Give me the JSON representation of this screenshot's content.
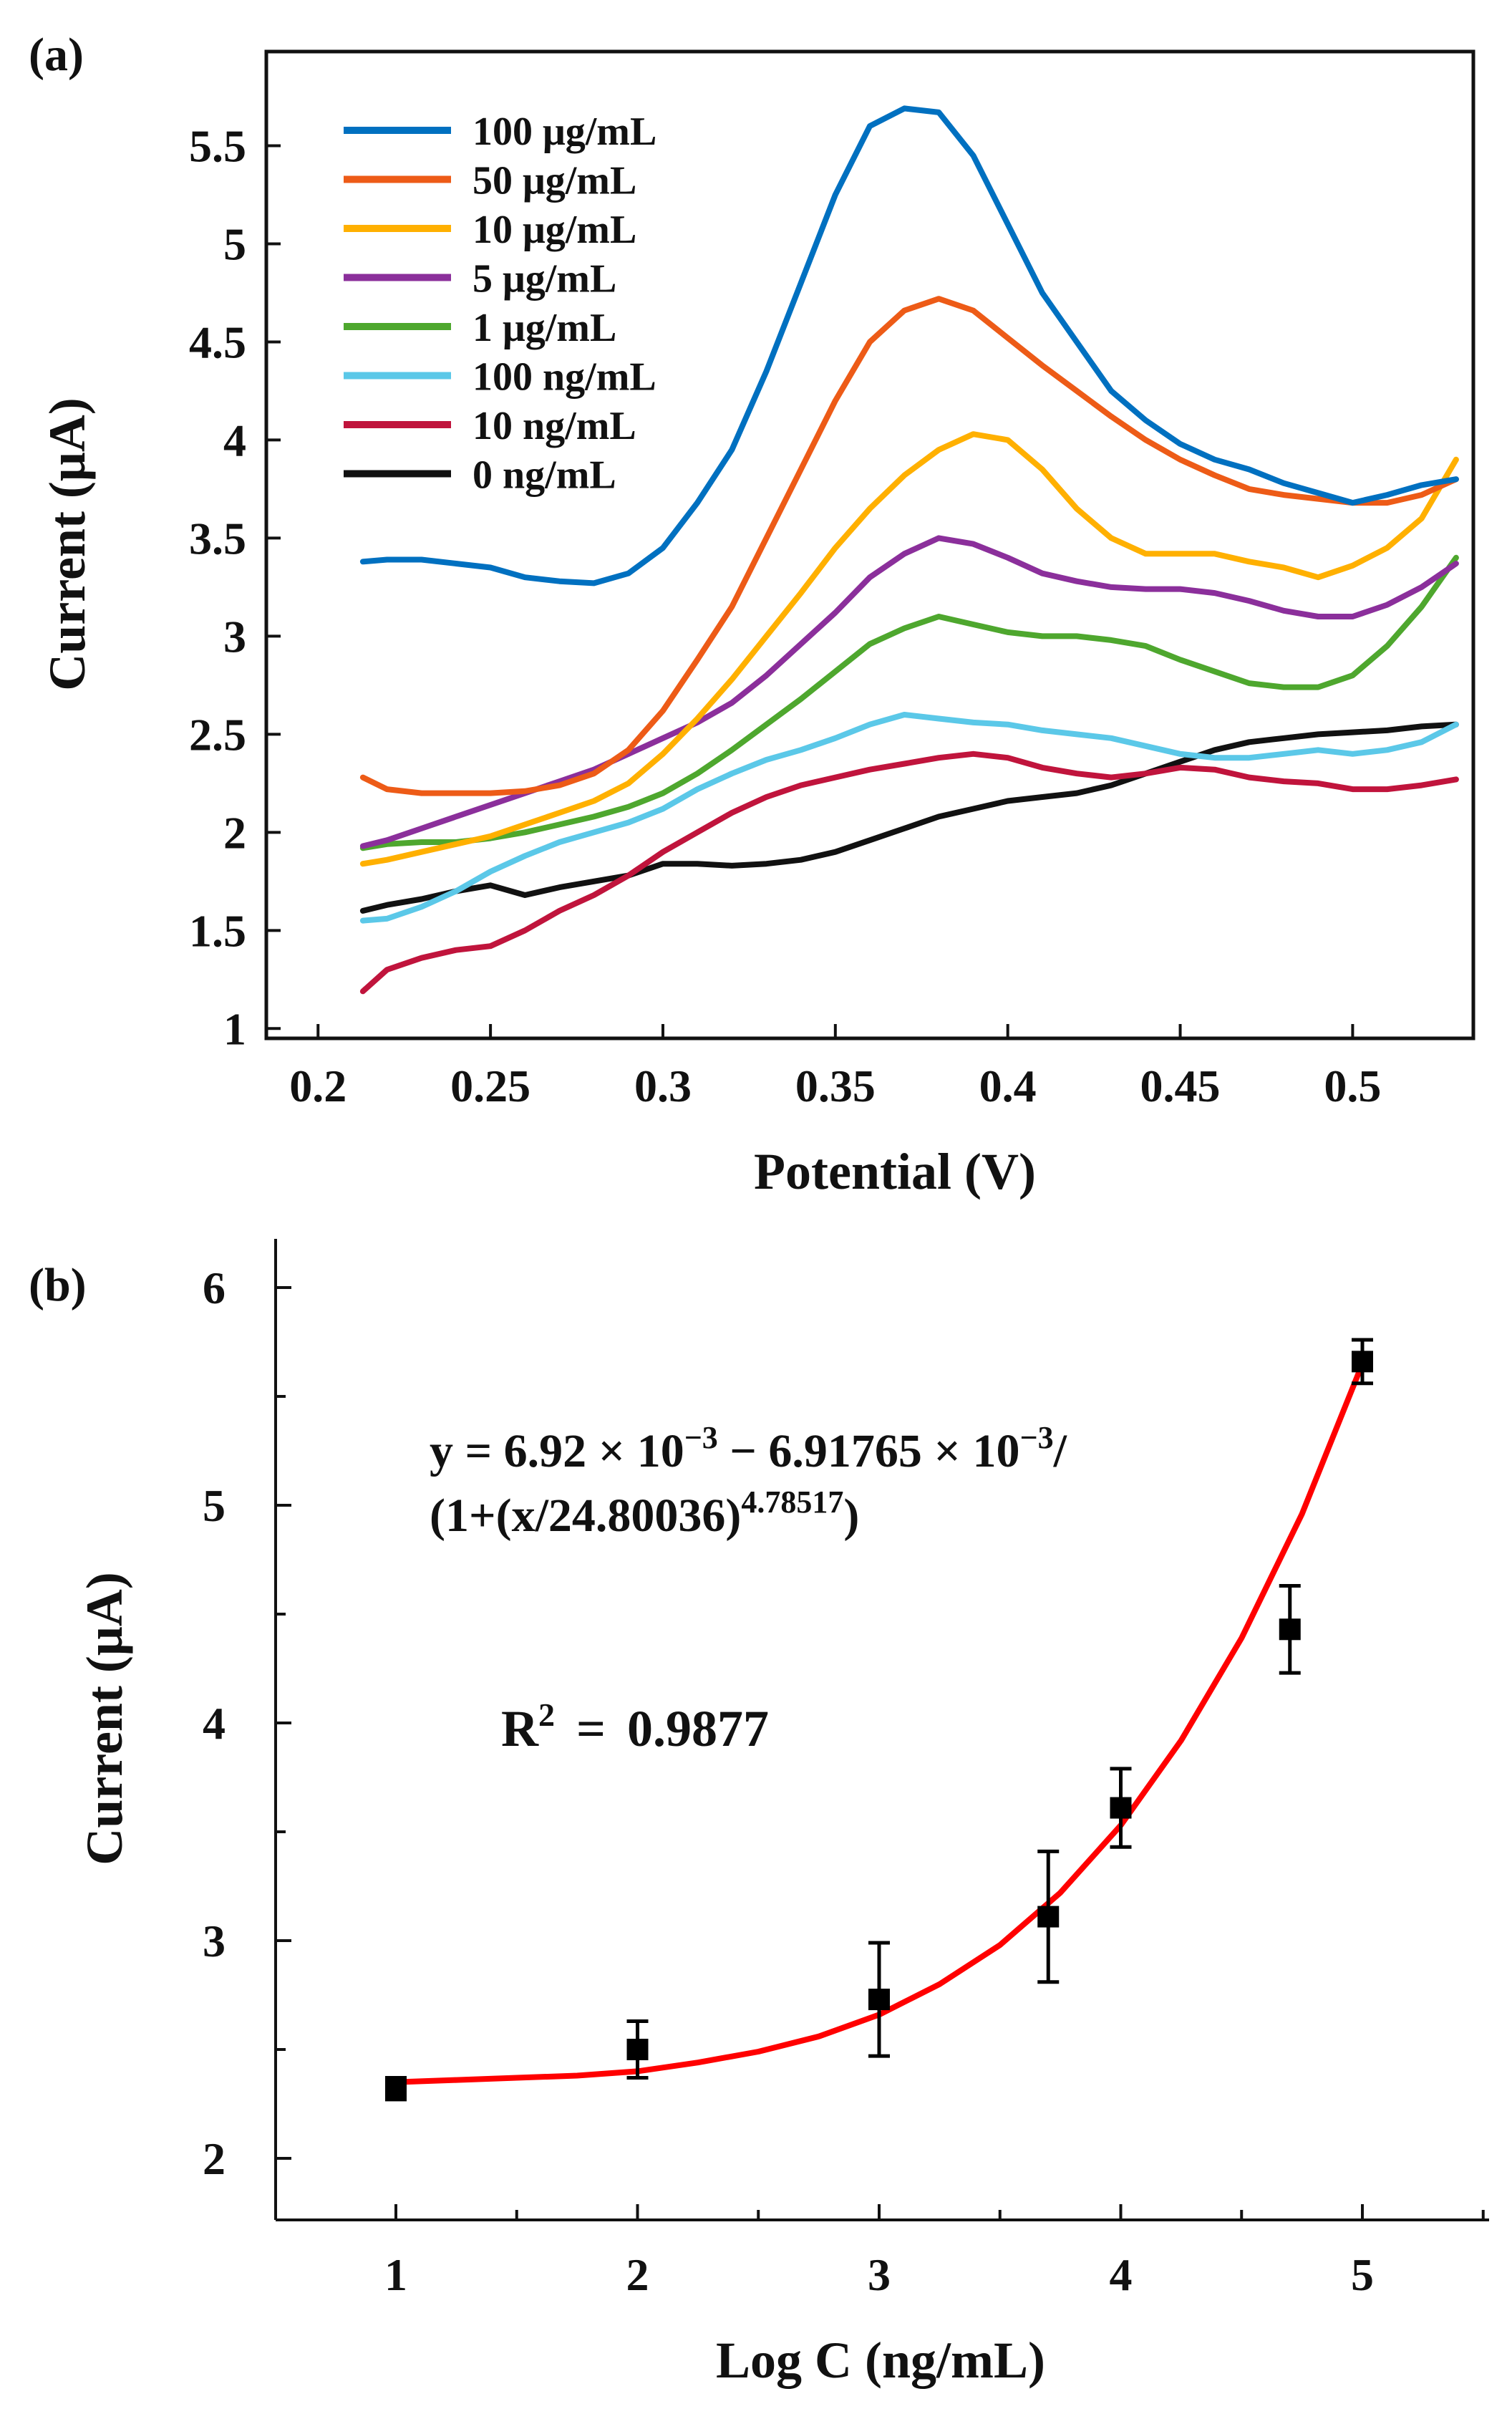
{
  "chart_data": [
    {
      "panel_label": "(a)",
      "type": "line",
      "title": "",
      "xlabel": "Potential (V)",
      "ylabel": "Current (μA)",
      "xlim": [
        0.185,
        0.535
      ],
      "ylim": [
        0.95,
        5.98
      ],
      "xticks": [
        0.2,
        0.25,
        0.3,
        0.35,
        0.4,
        0.45,
        0.5
      ],
      "xtick_labels": [
        "0.2",
        "0.25",
        "0.3",
        "0.35",
        "0.4",
        "0.45",
        "0.5"
      ],
      "yticks": [
        1,
        1.5,
        2,
        2.5,
        3,
        3.5,
        4,
        4.5,
        5,
        5.5
      ],
      "ytick_labels": [
        "1",
        "1.5",
        "2",
        "2.5",
        "3",
        "3.5",
        "4",
        "4.5",
        "5",
        "5.5"
      ],
      "legend_position": "top-left",
      "series": [
        {
          "name": "100 μg/mL",
          "color": "#0070C0",
          "x": [
            0.213,
            0.22,
            0.23,
            0.24,
            0.25,
            0.26,
            0.27,
            0.28,
            0.29,
            0.3,
            0.31,
            0.32,
            0.33,
            0.34,
            0.35,
            0.36,
            0.37,
            0.38,
            0.39,
            0.4,
            0.41,
            0.42,
            0.43,
            0.44,
            0.45,
            0.46,
            0.47,
            0.48,
            0.49,
            0.5,
            0.51,
            0.52,
            0.53
          ],
          "y": [
            3.38,
            3.39,
            3.39,
            3.37,
            3.35,
            3.3,
            3.28,
            3.27,
            3.32,
            3.45,
            3.68,
            3.95,
            4.35,
            4.8,
            5.25,
            5.6,
            5.69,
            5.67,
            5.45,
            5.1,
            4.75,
            4.5,
            4.25,
            4.1,
            3.98,
            3.9,
            3.85,
            3.78,
            3.73,
            3.68,
            3.72,
            3.77,
            3.8
          ]
        },
        {
          "name": "50 μg/mL",
          "color": "#ED5B17",
          "x": [
            0.213,
            0.22,
            0.23,
            0.24,
            0.25,
            0.26,
            0.27,
            0.28,
            0.29,
            0.3,
            0.31,
            0.32,
            0.33,
            0.34,
            0.35,
            0.36,
            0.37,
            0.38,
            0.39,
            0.4,
            0.41,
            0.42,
            0.43,
            0.44,
            0.45,
            0.46,
            0.47,
            0.48,
            0.49,
            0.5,
            0.51,
            0.52,
            0.53
          ],
          "y": [
            2.28,
            2.22,
            2.2,
            2.2,
            2.2,
            2.21,
            2.24,
            2.3,
            2.42,
            2.62,
            2.88,
            3.15,
            3.5,
            3.85,
            4.2,
            4.5,
            4.66,
            4.72,
            4.66,
            4.52,
            4.38,
            4.25,
            4.12,
            4.0,
            3.9,
            3.82,
            3.75,
            3.72,
            3.7,
            3.68,
            3.68,
            3.72,
            3.8
          ]
        },
        {
          "name": "10 μg/mL",
          "color": "#FFB000",
          "x": [
            0.213,
            0.22,
            0.23,
            0.24,
            0.25,
            0.26,
            0.27,
            0.28,
            0.29,
            0.3,
            0.31,
            0.32,
            0.33,
            0.34,
            0.35,
            0.36,
            0.37,
            0.38,
            0.39,
            0.4,
            0.41,
            0.42,
            0.43,
            0.44,
            0.45,
            0.46,
            0.47,
            0.48,
            0.49,
            0.5,
            0.51,
            0.52,
            0.53
          ],
          "y": [
            1.84,
            1.86,
            1.9,
            1.94,
            1.98,
            2.04,
            2.1,
            2.16,
            2.25,
            2.4,
            2.58,
            2.78,
            3.0,
            3.22,
            3.45,
            3.65,
            3.82,
            3.95,
            4.03,
            4.0,
            3.85,
            3.65,
            3.5,
            3.42,
            3.42,
            3.42,
            3.38,
            3.35,
            3.3,
            3.36,
            3.45,
            3.6,
            3.9
          ]
        },
        {
          "name": "5 μg/mL",
          "color": "#8B2F9B",
          "x": [
            0.213,
            0.22,
            0.23,
            0.24,
            0.25,
            0.26,
            0.27,
            0.28,
            0.29,
            0.3,
            0.31,
            0.32,
            0.33,
            0.34,
            0.35,
            0.36,
            0.37,
            0.38,
            0.39,
            0.4,
            0.41,
            0.42,
            0.43,
            0.44,
            0.45,
            0.46,
            0.47,
            0.48,
            0.49,
            0.5,
            0.51,
            0.52,
            0.53
          ],
          "y": [
            1.93,
            1.96,
            2.02,
            2.08,
            2.14,
            2.2,
            2.26,
            2.32,
            2.4,
            2.48,
            2.56,
            2.66,
            2.8,
            2.96,
            3.12,
            3.3,
            3.42,
            3.5,
            3.47,
            3.4,
            3.32,
            3.28,
            3.25,
            3.24,
            3.24,
            3.22,
            3.18,
            3.13,
            3.1,
            3.1,
            3.16,
            3.25,
            3.37
          ]
        },
        {
          "name": "1 μg/mL",
          "color": "#4EA72E",
          "x": [
            0.213,
            0.22,
            0.23,
            0.24,
            0.25,
            0.26,
            0.27,
            0.28,
            0.29,
            0.3,
            0.31,
            0.32,
            0.33,
            0.34,
            0.35,
            0.36,
            0.37,
            0.38,
            0.39,
            0.4,
            0.41,
            0.42,
            0.43,
            0.44,
            0.45,
            0.46,
            0.47,
            0.48,
            0.49,
            0.5,
            0.51,
            0.52,
            0.53
          ],
          "y": [
            1.92,
            1.94,
            1.95,
            1.95,
            1.97,
            2.0,
            2.04,
            2.08,
            2.13,
            2.2,
            2.3,
            2.42,
            2.55,
            2.68,
            2.82,
            2.96,
            3.04,
            3.1,
            3.06,
            3.02,
            3.0,
            3.0,
            2.98,
            2.95,
            2.88,
            2.82,
            2.76,
            2.74,
            2.74,
            2.8,
            2.95,
            3.15,
            3.4
          ]
        },
        {
          "name": "100 ng/mL",
          "color": "#5BC8E8",
          "x": [
            0.213,
            0.22,
            0.23,
            0.24,
            0.25,
            0.26,
            0.27,
            0.28,
            0.29,
            0.3,
            0.31,
            0.32,
            0.33,
            0.34,
            0.35,
            0.36,
            0.37,
            0.38,
            0.39,
            0.4,
            0.41,
            0.42,
            0.43,
            0.44,
            0.45,
            0.46,
            0.47,
            0.48,
            0.49,
            0.5,
            0.51,
            0.52,
            0.53
          ],
          "y": [
            1.55,
            1.56,
            1.62,
            1.7,
            1.8,
            1.88,
            1.95,
            2.0,
            2.05,
            2.12,
            2.22,
            2.3,
            2.37,
            2.42,
            2.48,
            2.55,
            2.6,
            2.58,
            2.56,
            2.55,
            2.52,
            2.5,
            2.48,
            2.44,
            2.4,
            2.38,
            2.38,
            2.4,
            2.42,
            2.4,
            2.42,
            2.46,
            2.55
          ]
        },
        {
          "name": "10 ng/mL",
          "color": "#C0143C",
          "x": [
            0.213,
            0.22,
            0.23,
            0.24,
            0.25,
            0.26,
            0.27,
            0.28,
            0.29,
            0.3,
            0.31,
            0.32,
            0.33,
            0.34,
            0.35,
            0.36,
            0.37,
            0.38,
            0.39,
            0.4,
            0.41,
            0.42,
            0.43,
            0.44,
            0.45,
            0.46,
            0.47,
            0.48,
            0.49,
            0.5,
            0.51,
            0.52,
            0.53
          ],
          "y": [
            1.19,
            1.3,
            1.36,
            1.4,
            1.42,
            1.5,
            1.6,
            1.68,
            1.78,
            1.9,
            2.0,
            2.1,
            2.18,
            2.24,
            2.28,
            2.32,
            2.35,
            2.38,
            2.4,
            2.38,
            2.33,
            2.3,
            2.28,
            2.3,
            2.33,
            2.32,
            2.28,
            2.26,
            2.25,
            2.22,
            2.22,
            2.24,
            2.27
          ]
        },
        {
          "name": "0 ng/mL",
          "color": "#111111",
          "x": [
            0.213,
            0.22,
            0.23,
            0.24,
            0.25,
            0.26,
            0.27,
            0.28,
            0.29,
            0.3,
            0.31,
            0.32,
            0.33,
            0.34,
            0.35,
            0.36,
            0.37,
            0.38,
            0.39,
            0.4,
            0.41,
            0.42,
            0.43,
            0.44,
            0.45,
            0.46,
            0.47,
            0.48,
            0.49,
            0.5,
            0.51,
            0.52,
            0.53
          ],
          "y": [
            1.6,
            1.63,
            1.66,
            1.7,
            1.73,
            1.68,
            1.72,
            1.75,
            1.78,
            1.84,
            1.84,
            1.83,
            1.84,
            1.86,
            1.9,
            1.96,
            2.02,
            2.08,
            2.12,
            2.16,
            2.18,
            2.2,
            2.24,
            2.3,
            2.36,
            2.42,
            2.46,
            2.48,
            2.5,
            2.51,
            2.52,
            2.54,
            2.55
          ]
        }
      ]
    },
    {
      "panel_label": "(b)",
      "type": "scatter",
      "title": "",
      "xlabel": "Log C (ng/mL)",
      "ylabel": "Current (μA)",
      "xlim": [
        0.5,
        5.5
      ],
      "ylim": [
        1.75,
        6.25
      ],
      "xticks": [
        1,
        2,
        3,
        4,
        5
      ],
      "xtick_labels": [
        "1",
        "2",
        "3",
        "4",
        "5"
      ],
      "yticks": [
        2,
        3,
        4,
        5,
        6
      ],
      "ytick_labels": [
        "2",
        "3",
        "4",
        "5",
        "6"
      ],
      "points": {
        "x": [
          1,
          2,
          3,
          3.7,
          4,
          4.7,
          5
        ],
        "y": [
          2.32,
          2.5,
          2.73,
          3.11,
          3.61,
          4.43,
          5.66
        ],
        "yerr": [
          0.05,
          0.13,
          0.26,
          0.3,
          0.18,
          0.2,
          0.1
        ],
        "color": "#000000"
      },
      "fit": {
        "color": "#FF0000",
        "equation_line1": "y = 6.92 × 10",
        "equation_exp1": "−3",
        "equation_mid": " − 6.91765 × 10",
        "equation_exp2": "−3",
        "equation_tail": "/",
        "equation_line2": "(1+(x/24.80036)",
        "equation_exp3": "4.78517",
        "equation_close": ")",
        "r2_label": "R",
        "r2_sup": "2",
        "r2_eq": "=",
        "r2_value": "0.9877",
        "x": [
          1.0,
          1.25,
          1.5,
          1.75,
          2.0,
          2.25,
          2.5,
          2.75,
          3.0,
          3.25,
          3.5,
          3.75,
          4.0,
          4.25,
          4.5,
          4.75,
          5.0
        ],
        "y": [
          2.35,
          2.36,
          2.37,
          2.38,
          2.4,
          2.44,
          2.49,
          2.56,
          2.66,
          2.8,
          2.98,
          3.22,
          3.53,
          3.92,
          4.39,
          4.96,
          5.65
        ]
      }
    }
  ]
}
